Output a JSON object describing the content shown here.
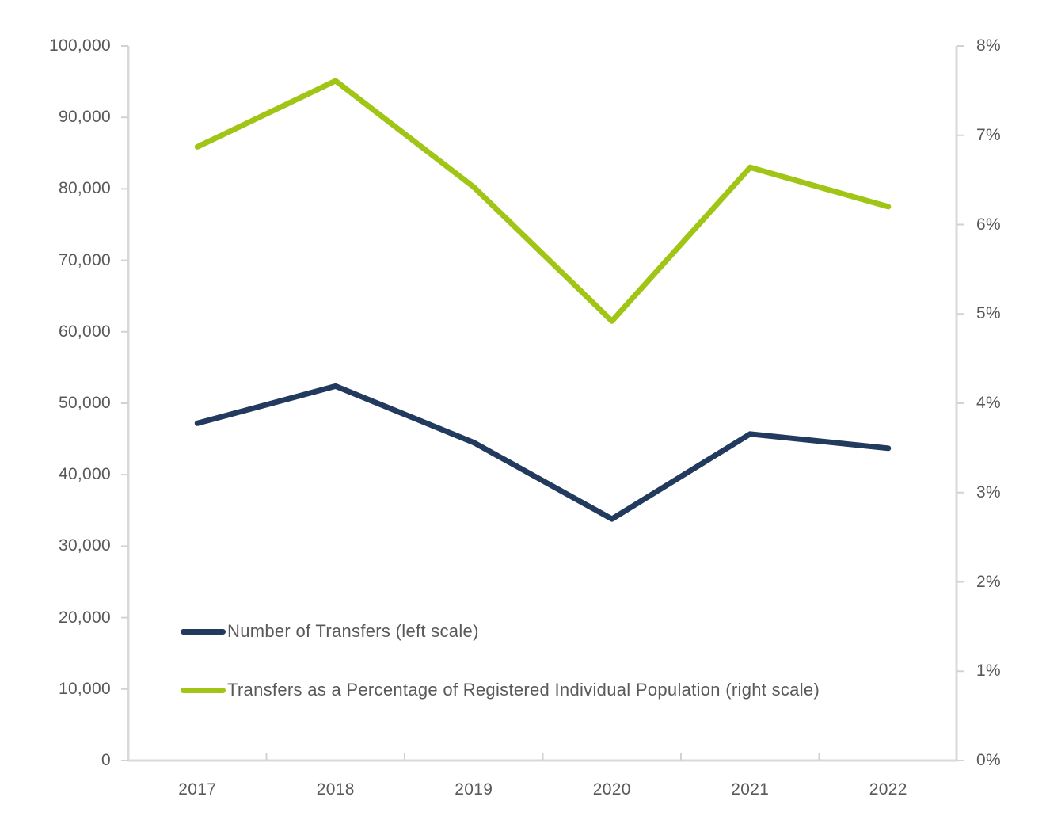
{
  "chart_data": {
    "type": "line",
    "categories": [
      "2017",
      "2018",
      "2019",
      "2020",
      "2021",
      "2022"
    ],
    "series": [
      {
        "name": "Number of Transfers (left scale)",
        "axis": "left",
        "color": "#223a5e",
        "values": [
          47200,
          52400,
          44500,
          33800,
          45700,
          43700
        ]
      },
      {
        "name": "Transfers as a Percentage of Registered Individual Population (right scale)",
        "axis": "right",
        "color": "#a0c515",
        "values": [
          6.87,
          7.61,
          6.42,
          4.92,
          6.64,
          6.2
        ]
      }
    ],
    "left_axis": {
      "min": 0,
      "max": 100000,
      "step": 10000,
      "tick_labels": [
        "0",
        "10,000",
        "20,000",
        "30,000",
        "40,000",
        "50,000",
        "60,000",
        "70,000",
        "80,000",
        "90,000",
        "100,000"
      ]
    },
    "right_axis": {
      "min": 0,
      "max": 8,
      "step": 1,
      "tick_labels": [
        "0%",
        "1%",
        "2%",
        "3%",
        "4%",
        "5%",
        "6%",
        "7%",
        "8%"
      ]
    },
    "xlabel": "",
    "ylabel": "",
    "grid": false,
    "legend_position": "inside-bottom-left"
  },
  "style": {
    "axis_line_color": "#d9d9d9",
    "tick_color": "#d2d2d2",
    "label_color": "#595959",
    "background": "#ffffff"
  }
}
